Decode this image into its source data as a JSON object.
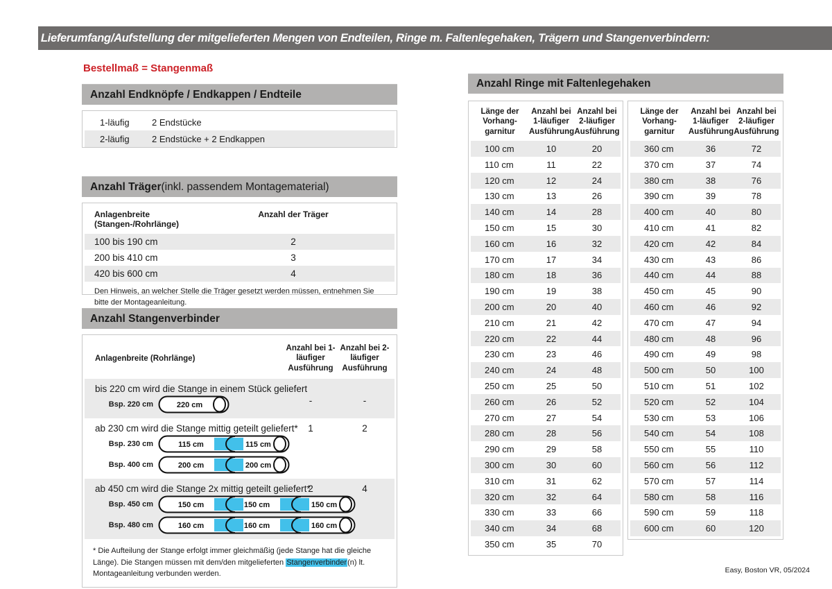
{
  "header": {
    "title": "Lieferumfang/Aufstellung der mitgelieferten Mengen von Endteilen, Ringe m. Faltenlegehaken, Trägern und Stangenverbindern:"
  },
  "subtitle": "Bestellmaß = Stangenmaß",
  "colors": {
    "topbar_bg": "#6e6c6b",
    "section_header_bg": "#b2b1b0",
    "row_stripe": "#e9e9e9",
    "accent_red": "#cc2127",
    "connector_blue": "#42c0ea",
    "border_gray": "#c8c8c8"
  },
  "sections": {
    "endteile": {
      "title": "Anzahl Endknöpfe / Endkappen / Endteile",
      "rows": [
        {
          "label": "1-läufig",
          "value": "2 Endstücke"
        },
        {
          "label": "2-läufig",
          "value": "2 Endstücke + 2 Endkappen"
        }
      ]
    },
    "traeger": {
      "title_bold": "Anzahl Träger",
      "title_rest": " (inkl. passendem Montagematerial)",
      "col1": "Anlagenbreite (Stangen-/Rohrlänge)",
      "col2": "Anzahl der Träger",
      "rows": [
        [
          "100 bis 190 cm",
          "2"
        ],
        [
          "200 bis 410 cm",
          "3"
        ],
        [
          "420 bis 600 cm",
          "4"
        ]
      ],
      "note": "Den Hinweis, an welcher Stelle die Träger gesetzt werden müssen, entnehmen Sie bitte der Montageanleitung."
    },
    "verbinder": {
      "title": "Anzahl Stangenverbinder",
      "col1": "Anlagenbreite (Rohrlänge)",
      "col2": "Anzahl bei 1-läufiger Ausführung",
      "col3": "Anzahl bei 2-läufiger Ausführung",
      "groups": [
        {
          "desc": "bis 220 cm wird die Stange in einem Stück geliefert",
          "v1": "-",
          "v2": "-",
          "examples": [
            {
              "label": "Bsp. 220 cm",
              "segments": [
                "220 cm"
              ]
            }
          ]
        },
        {
          "desc": "ab 230 cm wird die Stange mittig geteilt geliefert*",
          "v1": "1",
          "v2": "2",
          "examples": [
            {
              "label": "Bsp. 230 cm",
              "segments": [
                "115 cm",
                "115 cm"
              ]
            },
            {
              "label": "Bsp. 400 cm",
              "segments": [
                "200 cm",
                "200 cm"
              ]
            }
          ]
        },
        {
          "desc": "ab 450 cm wird die Stange 2x mittig geteilt geliefert*",
          "v1": "2",
          "v2": "4",
          "examples": [
            {
              "label": "Bsp. 450 cm",
              "segments": [
                "150 cm",
                "150 cm",
                "150 cm"
              ]
            },
            {
              "label": "Bsp. 480 cm",
              "segments": [
                "160 cm",
                "160 cm",
                "160 cm"
              ]
            }
          ]
        }
      ],
      "footnote": {
        "pre": "* Die Aufteilung der Stange erfolgt immer gleichmäßig (jede Stange hat die gleiche Länge). Die Stangen müssen mit dem/den mitgelieferten ",
        "highlight": "Stangenverbinder",
        "post": "(n) lt. Montageanleitung verbunden werden."
      }
    },
    "ringe": {
      "title": "Anzahl Ringe mit Faltenlegehaken",
      "col_headers": [
        "Länge der Vorhang-garnitur",
        "Anzahl bei 1-läufiger Ausführung",
        "Anzahl bei 2-läufiger Ausführung"
      ],
      "table1": [
        [
          "100 cm",
          "10",
          "20"
        ],
        [
          "110 cm",
          "11",
          "22"
        ],
        [
          "120 cm",
          "12",
          "24"
        ],
        [
          "130 cm",
          "13",
          "26"
        ],
        [
          "140 cm",
          "14",
          "28"
        ],
        [
          "150 cm",
          "15",
          "30"
        ],
        [
          "160 cm",
          "16",
          "32"
        ],
        [
          "170 cm",
          "17",
          "34"
        ],
        [
          "180 cm",
          "18",
          "36"
        ],
        [
          "190 cm",
          "19",
          "38"
        ],
        [
          "200 cm",
          "20",
          "40"
        ],
        [
          "210 cm",
          "21",
          "42"
        ],
        [
          "220 cm",
          "22",
          "44"
        ],
        [
          "230 cm",
          "23",
          "46"
        ],
        [
          "240 cm",
          "24",
          "48"
        ],
        [
          "250 cm",
          "25",
          "50"
        ],
        [
          "260 cm",
          "26",
          "52"
        ],
        [
          "270 cm",
          "27",
          "54"
        ],
        [
          "280 cm",
          "28",
          "56"
        ],
        [
          "290 cm",
          "29",
          "58"
        ],
        [
          "300 cm",
          "30",
          "60"
        ],
        [
          "310 cm",
          "31",
          "62"
        ],
        [
          "320 cm",
          "32",
          "64"
        ],
        [
          "330 cm",
          "33",
          "66"
        ],
        [
          "340 cm",
          "34",
          "68"
        ],
        [
          "350 cm",
          "35",
          "70"
        ]
      ],
      "table2": [
        [
          "360 cm",
          "36",
          "72"
        ],
        [
          "370 cm",
          "37",
          "74"
        ],
        [
          "380 cm",
          "38",
          "76"
        ],
        [
          "390 cm",
          "39",
          "78"
        ],
        [
          "400 cm",
          "40",
          "80"
        ],
        [
          "410 cm",
          "41",
          "82"
        ],
        [
          "420 cm",
          "42",
          "84"
        ],
        [
          "430 cm",
          "43",
          "86"
        ],
        [
          "440 cm",
          "44",
          "88"
        ],
        [
          "450 cm",
          "45",
          "90"
        ],
        [
          "460 cm",
          "46",
          "92"
        ],
        [
          "470 cm",
          "47",
          "94"
        ],
        [
          "480 cm",
          "48",
          "96"
        ],
        [
          "490 cm",
          "49",
          "98"
        ],
        [
          "500 cm",
          "50",
          "100"
        ],
        [
          "510 cm",
          "51",
          "102"
        ],
        [
          "520 cm",
          "52",
          "104"
        ],
        [
          "530 cm",
          "53",
          "106"
        ],
        [
          "540 cm",
          "54",
          "108"
        ],
        [
          "550 cm",
          "55",
          "110"
        ],
        [
          "560 cm",
          "56",
          "112"
        ],
        [
          "570 cm",
          "57",
          "114"
        ],
        [
          "580 cm",
          "58",
          "116"
        ],
        [
          "590 cm",
          "59",
          "118"
        ],
        [
          "600 cm",
          "60",
          "120"
        ]
      ]
    }
  },
  "footer": {
    "text": "Easy, Boston VR, 05/2024"
  }
}
